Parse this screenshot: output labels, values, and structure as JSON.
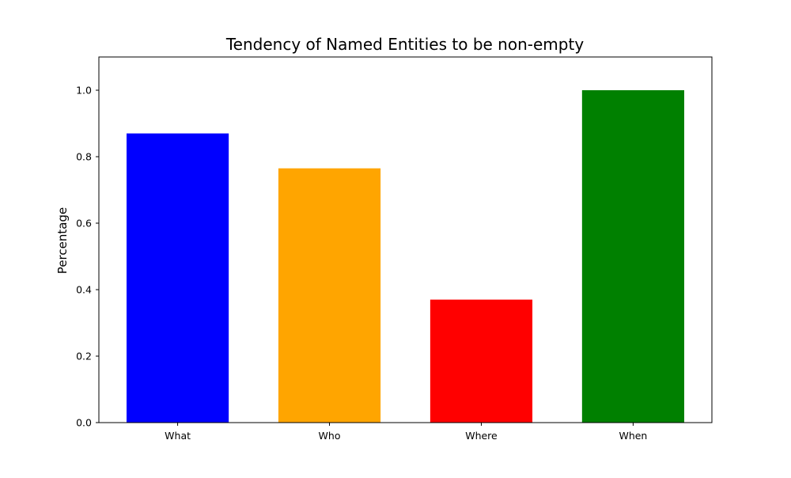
{
  "chart_data": {
    "type": "bar",
    "title": "Tendency of Named Entities to be non-empty",
    "xlabel": "",
    "ylabel": "Percentage",
    "categories": [
      "What",
      "Who",
      "Where",
      "When"
    ],
    "values": [
      0.87,
      0.765,
      0.37,
      1.0
    ],
    "colors": [
      "#0000ff",
      "#ffa500",
      "#ff0000",
      "#008000"
    ],
    "ylim": [
      0,
      1.1
    ],
    "yticks": [
      0.0,
      0.2,
      0.4,
      0.6,
      0.8,
      1.0
    ],
    "ytick_labels": [
      "0.0",
      "0.2",
      "0.4",
      "0.6",
      "0.8",
      "1.0"
    ],
    "grid": false,
    "legend": "none"
  }
}
